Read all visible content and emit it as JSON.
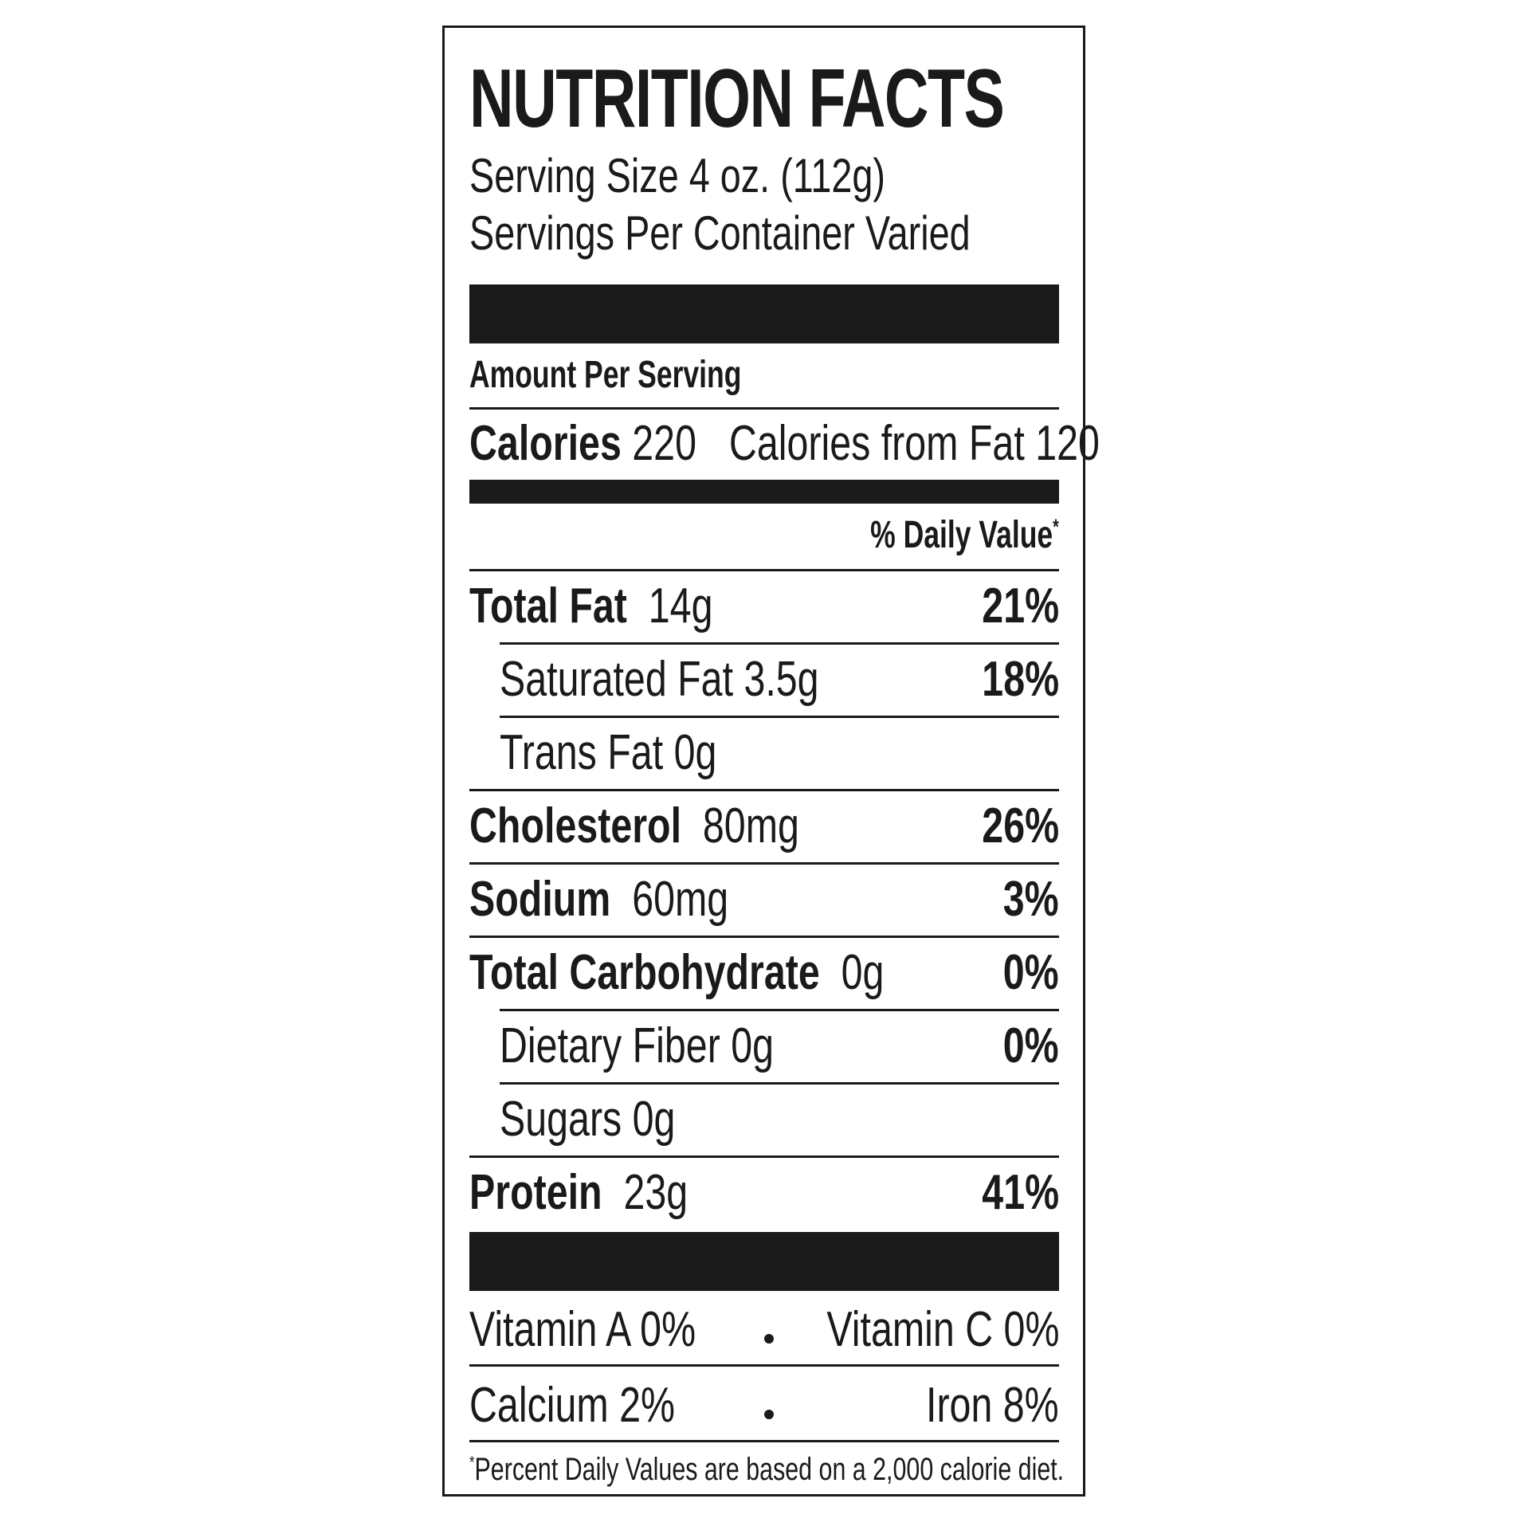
{
  "label": {
    "title": "NUTRITION FACTS",
    "serving_size": "Serving Size 4 oz. (112g)",
    "servings_per_container": "Servings Per Container Varied",
    "amount_per_serving": "Amount Per Serving",
    "calories_label": "Calories",
    "calories_value": "220",
    "calories_from_fat": "Calories from Fat 120",
    "daily_value_header": "% Daily Value",
    "daily_value_mark": "*",
    "nutrients": [
      {
        "name": "Total Fat",
        "amount": "14g",
        "dv": "21%"
      },
      {
        "name": "Saturated Fat 3.5g",
        "amount": "",
        "dv": "18%"
      },
      {
        "name": "Trans Fat 0g",
        "amount": "",
        "dv": ""
      },
      {
        "name": "Cholesterol",
        "amount": "80mg",
        "dv": "26%"
      },
      {
        "name": "Sodium",
        "amount": "60mg",
        "dv": "3%"
      },
      {
        "name": "Total Carbohydrate",
        "amount": "0g",
        "dv": "0%"
      },
      {
        "name": "Dietary Fiber 0g",
        "amount": "",
        "dv": "0%"
      },
      {
        "name": "Sugars 0g",
        "amount": "",
        "dv": ""
      },
      {
        "name": "Protein",
        "amount": "23g",
        "dv": "41%"
      }
    ],
    "vitamins": [
      {
        "left": "Vitamin A 0%",
        "right": "Vitamin C 0%"
      },
      {
        "left": "Calcium 2%",
        "right": "Iron 8%"
      }
    ],
    "footnote_mark": "*",
    "footnote": "Percent Daily Values are based on a 2,000 calorie diet."
  }
}
